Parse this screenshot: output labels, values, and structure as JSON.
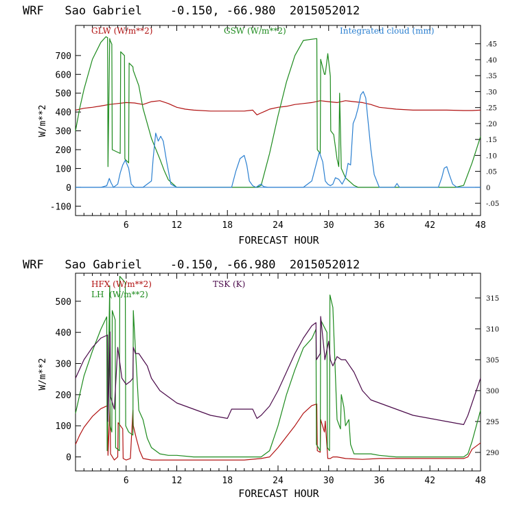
{
  "colors": {
    "red": "#b01010",
    "green": "#1c8a1c",
    "blue": "#2a7fd0",
    "purple": "#4a0a4a",
    "zero": "#2a7fd0"
  },
  "chart_data": [
    {
      "type": "line",
      "title": "WRF   Sao Gabriel    -0.150, -66.980  2015052012",
      "xlabel": "FORECAST HOUR",
      "ylabel": "W/m**2",
      "xlim": [
        0,
        48
      ],
      "xticks": [
        "6",
        "12",
        "18",
        "24",
        "30",
        "36",
        "42",
        "48"
      ],
      "ylim": [
        -150,
        860
      ],
      "yticks": [
        "-100",
        "0",
        "100",
        "200",
        "300",
        "400",
        "500",
        "600",
        "700"
      ],
      "y2lim": [
        -0.0885,
        0.5075
      ],
      "y2ticks": [
        "-.05",
        "0",
        ".05",
        ".10",
        ".15",
        ".20",
        ".25",
        ".30",
        ".35",
        ".40",
        ".45"
      ],
      "series": [
        {
          "name": "GLW (W/m**2)",
          "color": "red",
          "axis": "left",
          "x": [
            0,
            1,
            2,
            3,
            4,
            5,
            6,
            7,
            8,
            9,
            10,
            11,
            12,
            13,
            14,
            16,
            18,
            20,
            21,
            21.5,
            22,
            22.5,
            23,
            24,
            25,
            26,
            27,
            28,
            29,
            30,
            31,
            32,
            33,
            34,
            35,
            36,
            38,
            40,
            42,
            44,
            46,
            47,
            48
          ],
          "y": [
            410,
            420,
            425,
            432,
            440,
            445,
            450,
            448,
            440,
            455,
            460,
            445,
            425,
            415,
            410,
            405,
            405,
            405,
            410,
            385,
            395,
            405,
            415,
            425,
            430,
            440,
            445,
            450,
            460,
            455,
            450,
            460,
            455,
            450,
            440,
            425,
            415,
            410,
            410,
            410,
            408,
            408,
            410
          ]
        },
        {
          "name": "GSW (W/m**2)",
          "color": "green",
          "axis": "left",
          "x": [
            0,
            0.5,
            1,
            2,
            3,
            3.6,
            3.8,
            3.85,
            4.05,
            4.1,
            4.3,
            4.35,
            5.3,
            5.35,
            5.8,
            5.85,
            6.3,
            6.35,
            6.8,
            6.85,
            7.5,
            8,
            9,
            10,
            10.5,
            11,
            12,
            14,
            16,
            18,
            20,
            21.5,
            22,
            23,
            24,
            25,
            26,
            27,
            28.6,
            28.65,
            29,
            29.05,
            29.5,
            29.6,
            29.9,
            30.2,
            30.25,
            30.6,
            31,
            31.2,
            31.3,
            31.5,
            32,
            32.5,
            33,
            33.5,
            34,
            35,
            36,
            38,
            40,
            42,
            44,
            45,
            46,
            47,
            48
          ],
          "y": [
            300,
            420,
            520,
            680,
            770,
            800,
            795,
            110,
            790,
            780,
            760,
            200,
            180,
            720,
            700,
            150,
            130,
            660,
            640,
            620,
            540,
            420,
            260,
            150,
            90,
            40,
            0,
            0,
            0,
            0,
            0,
            0,
            10,
            180,
            380,
            560,
            700,
            780,
            790,
            200,
            180,
            680,
            600,
            600,
            710,
            590,
            300,
            280,
            150,
            110,
            500,
            100,
            50,
            30,
            10,
            0,
            0,
            0,
            0,
            0,
            0,
            0,
            0,
            0,
            10,
            130,
            270
          ]
        },
        {
          "name": "Integrated cloud (mm)",
          "color": "blue",
          "axis": "right",
          "x": [
            0,
            3,
            3.7,
            4.0,
            4.2,
            4.5,
            5,
            5.3,
            5.6,
            5.9,
            6.3,
            6.6,
            7,
            8,
            9,
            9.2,
            9.5,
            9.8,
            10.1,
            10.4,
            10.8,
            11.3,
            12,
            18.5,
            19,
            19.5,
            20,
            20.3,
            20.6,
            21,
            21.4,
            21.8,
            22,
            22.3,
            22.8,
            27,
            28,
            28.6,
            28.9,
            29.3,
            29.6,
            29.9,
            30.2,
            30.5,
            30.8,
            31.2,
            31.6,
            32,
            32.3,
            32.6,
            32.9,
            33.2,
            33.5,
            33.8,
            34.1,
            34.4,
            34.7,
            35,
            35.4,
            36,
            37.8,
            38.1,
            38.4,
            43,
            43.4,
            43.7,
            44,
            44.3,
            44.7,
            45.2,
            48
          ],
          "y": [
            0,
            0,
            0.005,
            0.028,
            0.015,
            0,
            0.01,
            0.045,
            0.07,
            0.085,
            0.06,
            0.01,
            0,
            0,
            0.02,
            0.09,
            0.17,
            0.145,
            0.16,
            0.145,
            0.08,
            0.01,
            0,
            0,
            0.05,
            0.09,
            0.1,
            0.07,
            0.02,
            0.005,
            0,
            0.008,
            0.01,
            0.002,
            0,
            0,
            0.02,
            0.08,
            0.11,
            0.08,
            0.02,
            0.01,
            0.005,
            0.01,
            0.03,
            0.025,
            0.01,
            0.03,
            0.075,
            0.07,
            0.2,
            0.22,
            0.25,
            0.29,
            0.3,
            0.28,
            0.2,
            0.12,
            0.04,
            0,
            0,
            0.012,
            0,
            0,
            0.03,
            0.06,
            0.065,
            0.04,
            0.01,
            0,
            0
          ]
        }
      ]
    },
    {
      "type": "line",
      "title": "WRF   Sao Gabriel    -0.150, -66.980  2015052012",
      "xlabel": "FORECAST HOUR",
      "ylabel": "W/m**2",
      "xlim": [
        0,
        48
      ],
      "xticks": [
        "6",
        "12",
        "18",
        "24",
        "30",
        "36",
        "42",
        "48"
      ],
      "ylim": [
        -45,
        590
      ],
      "yticks": [
        "0",
        "100",
        "200",
        "300",
        "400",
        "500"
      ],
      "y2lim": [
        287,
        319
      ],
      "y2ticks": [
        "290",
        "295",
        "300",
        "305",
        "310",
        "315"
      ],
      "series": [
        {
          "name": "HFX (W/m**2)",
          "color": "red",
          "axis": "left",
          "x": [
            0,
            0.5,
            1,
            2,
            3,
            3.8,
            3.85,
            4.1,
            4.15,
            4.6,
            5,
            5.05,
            5.6,
            5.65,
            6,
            6.5,
            6.8,
            6.85,
            7.2,
            7.6,
            8,
            9,
            10,
            11,
            12,
            14,
            16,
            18,
            20,
            22,
            23,
            24,
            25,
            26,
            27,
            28,
            28.6,
            28.65,
            29,
            29.05,
            29.5,
            29.6,
            29.9,
            30.2,
            30.5,
            31,
            32,
            34,
            36,
            40,
            42,
            44,
            46,
            46.5,
            47,
            48
          ],
          "y": [
            40,
            70,
            95,
            130,
            155,
            165,
            5,
            170,
            10,
            -10,
            0,
            110,
            90,
            -5,
            -10,
            -5,
            150,
            100,
            60,
            20,
            -5,
            -10,
            -10,
            -10,
            -10,
            -10,
            -10,
            -10,
            -10,
            -5,
            0,
            30,
            65,
            100,
            140,
            165,
            170,
            20,
            15,
            120,
            80,
            115,
            -5,
            -5,
            0,
            0,
            -5,
            -8,
            -5,
            -5,
            -5,
            -5,
            -5,
            0,
            25,
            45
          ]
        },
        {
          "name": "LH  (W/m**2)",
          "color": "green",
          "axis": "left",
          "x": [
            0,
            0.5,
            1,
            2,
            3,
            3.7,
            3.75,
            4.05,
            4.1,
            4.3,
            4.35,
            4.7,
            4.75,
            5.2,
            5.25,
            5.9,
            5.95,
            6.3,
            6.8,
            6.85,
            7.5,
            8,
            8.5,
            9,
            10,
            11,
            12,
            14,
            16,
            18,
            20,
            21,
            22,
            23,
            24,
            25,
            26,
            27,
            28,
            28.5,
            28.55,
            29,
            29.05,
            29.8,
            29.85,
            30.1,
            30.15,
            30.5,
            31,
            31.4,
            31.5,
            31.8,
            32,
            32.4,
            32.6,
            33,
            34,
            35,
            36,
            38,
            40,
            42,
            44,
            46,
            46.5,
            47,
            48
          ],
          "y": [
            140,
            200,
            260,
            340,
            410,
            450,
            20,
            550,
            100,
            80,
            470,
            440,
            30,
            20,
            580,
            560,
            100,
            80,
            70,
            470,
            150,
            120,
            60,
            30,
            10,
            5,
            5,
            0,
            0,
            0,
            0,
            0,
            0,
            20,
            100,
            200,
            280,
            350,
            380,
            410,
            40,
            20,
            440,
            400,
            30,
            20,
            520,
            480,
            120,
            90,
            200,
            160,
            100,
            120,
            40,
            10,
            10,
            10,
            5,
            0,
            0,
            0,
            0,
            0,
            10,
            50,
            150
          ]
        },
        {
          "name": "TSK (K)",
          "color": "purple",
          "axis": "right",
          "x": [
            0,
            1,
            2,
            3,
            3.8,
            3.85,
            4.1,
            4.15,
            4.6,
            5,
            5.5,
            6,
            6.5,
            6.8,
            6.85,
            7.1,
            7.5,
            8,
            8.5,
            9,
            10,
            11,
            12,
            14,
            16,
            18,
            18.5,
            20,
            21,
            21.5,
            22,
            23,
            24,
            25,
            26,
            27,
            28,
            28.5,
            28.55,
            29,
            29.05,
            29.5,
            29.55,
            30,
            30.2,
            30.5,
            31,
            31.5,
            32,
            33,
            34,
            35,
            36,
            38,
            40,
            42,
            44,
            46,
            46.5,
            47,
            48
          ],
          "y": [
            302,
            305,
            307,
            308.5,
            309,
            295,
            309.5,
            299,
            297,
            307,
            302,
            301,
            301.5,
            302,
            307,
            306,
            306,
            305,
            304,
            302,
            300,
            299,
            298,
            297,
            296,
            295.5,
            297,
            297,
            297,
            295.5,
            296,
            297.5,
            300,
            303,
            306,
            308.5,
            310.5,
            311,
            305,
            306,
            312,
            306,
            305,
            308,
            305,
            304,
            305.5,
            305,
            305,
            303,
            300,
            298.5,
            298,
            297,
            296,
            295.5,
            295,
            294.5,
            296,
            298,
            302
          ]
        }
      ]
    }
  ]
}
